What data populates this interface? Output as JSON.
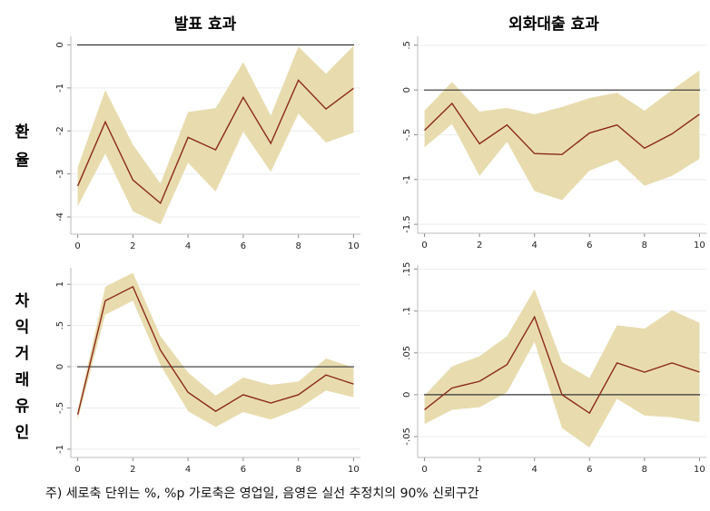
{
  "column_titles": [
    "발표 효과",
    "외화대출 효과"
  ],
  "row_labels": [
    "환율",
    "차익거래유인"
  ],
  "footnote": "주) 세로축 단위는 %, %p 가로축은 영업일, 음영은 실선 추정치의 90% 신뢰구간",
  "chart_data": [
    {
      "type": "line",
      "x": [
        0,
        1,
        2,
        3,
        4,
        5,
        6,
        7,
        8,
        9,
        10
      ],
      "values": [
        -3.28,
        -1.79,
        -3.14,
        -3.68,
        -2.15,
        -2.44,
        -1.22,
        -2.29,
        -0.82,
        -1.49,
        -1.01
      ],
      "band_upper": [
        -2.84,
        -1.05,
        -2.32,
        -3.22,
        -1.56,
        -1.47,
        -0.4,
        -1.64,
        -0.04,
        -0.67,
        -0.02
      ],
      "band_lower": [
        -3.75,
        -2.53,
        -3.87,
        -4.17,
        -2.74,
        -3.41,
        -2.02,
        -2.95,
        -1.6,
        -2.27,
        -2.04
      ],
      "color": "#8b2a1a",
      "band_color": "#e8dcaf",
      "reference_line": 0,
      "xlim": [
        -0.25,
        10.25
      ],
      "xticks": [
        0,
        2,
        4,
        6,
        8,
        10
      ],
      "ylim": [
        -4.4,
        0.2
      ],
      "yticks": [
        0,
        -1,
        -2,
        -3,
        -4
      ],
      "grid": true
    },
    {
      "type": "line",
      "x": [
        0,
        1,
        2,
        3,
        4,
        5,
        6,
        7,
        8,
        9,
        10
      ],
      "values": [
        -0.45,
        -0.15,
        -0.6,
        -0.39,
        -0.71,
        -0.72,
        -0.48,
        -0.39,
        -0.65,
        -0.49,
        -0.27
      ],
      "band_upper": [
        -0.23,
        0.09,
        -0.24,
        -0.2,
        -0.27,
        -0.19,
        -0.09,
        -0.03,
        -0.23,
        0,
        0.22
      ],
      "band_lower": [
        -0.64,
        -0.38,
        -0.96,
        -0.58,
        -1.13,
        -1.23,
        -0.9,
        -0.78,
        -1.07,
        -0.96,
        -0.77
      ],
      "color": "#8b2a1a",
      "band_color": "#e8dcaf",
      "reference_line": 0,
      "xlim": [
        -0.25,
        10.25
      ],
      "xticks": [
        0,
        2,
        4,
        6,
        8,
        10
      ],
      "ylim": [
        -1.6,
        0.6
      ],
      "yticks": [
        {
          "value": 0.5,
          "label": ".5"
        },
        0,
        {
          "value": -0.5,
          "label": "-.5"
        },
        -1,
        {
          "value": -1.5,
          "label": "-1.5"
        }
      ],
      "grid": true
    },
    {
      "type": "line",
      "x": [
        0,
        1,
        2,
        3,
        4,
        5,
        6,
        7,
        8,
        9,
        10
      ],
      "values": [
        -0.58,
        0.8,
        0.97,
        0.2,
        -0.31,
        -0.54,
        -0.34,
        -0.44,
        -0.34,
        -0.1,
        -0.21
      ],
      "band_upper": [
        -0.53,
        0.97,
        1.14,
        0.37,
        -0.07,
        -0.35,
        -0.13,
        -0.22,
        -0.18,
        0.1,
        -0.01
      ],
      "band_lower": [
        -0.64,
        0.63,
        0.8,
        0.02,
        -0.54,
        -0.73,
        -0.55,
        -0.64,
        -0.51,
        -0.29,
        -0.37
      ],
      "color": "#8b2a1a",
      "band_color": "#e8dcaf",
      "reference_line": 0,
      "xlim": [
        -0.25,
        10.25
      ],
      "xticks": [
        0,
        2,
        4,
        6,
        8,
        10
      ],
      "ylim": [
        -1.1,
        1.2
      ],
      "yticks": [
        1,
        {
          "value": 0.5,
          "label": ".5"
        },
        0,
        {
          "value": -0.5,
          "label": "-.5"
        },
        -1
      ],
      "grid": true
    },
    {
      "type": "line",
      "x": [
        0,
        1,
        2,
        3,
        4,
        5,
        6,
        7,
        8,
        9,
        10
      ],
      "values": [
        -0.018,
        0.008,
        0.016,
        0.036,
        0.093,
        0,
        -0.022,
        0.038,
        0.027,
        0.038,
        0.027
      ],
      "band_upper": [
        -0.001,
        0.034,
        0.046,
        0.07,
        0.126,
        0.039,
        0.02,
        0.083,
        0.079,
        0.101,
        0.086
      ],
      "band_lower": [
        -0.035,
        -0.018,
        -0.015,
        0.003,
        0.063,
        -0.04,
        -0.063,
        -0.005,
        -0.025,
        -0.027,
        -0.033
      ],
      "color": "#8b2a1a",
      "band_color": "#e8dcaf",
      "reference_line": 0,
      "xlim": [
        -0.25,
        10.25
      ],
      "xticks": [
        0,
        2,
        4,
        6,
        8,
        10
      ],
      "ylim": [
        -0.075,
        0.155
      ],
      "yticks": [
        {
          "value": 0.15,
          "label": ".15"
        },
        {
          "value": 0.1,
          "label": ".1"
        },
        {
          "value": 0.05,
          "label": ".05"
        },
        0,
        {
          "value": -0.05,
          "label": "-.05"
        }
      ],
      "grid": true
    }
  ]
}
